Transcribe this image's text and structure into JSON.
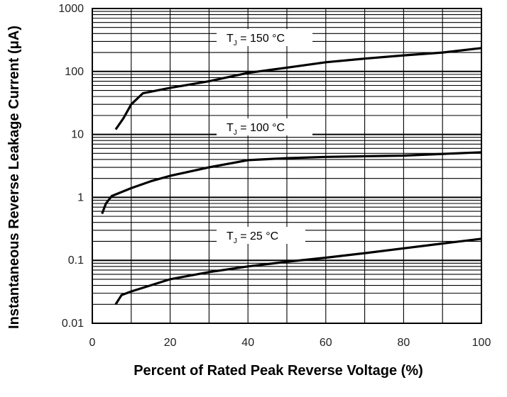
{
  "chart_data": {
    "type": "line",
    "title": "",
    "xlabel": "Percent of Rated Peak Reverse Voltage (%)",
    "ylabel": "Instantaneous Reverse Leakage Current (μA)",
    "xlim": [
      0,
      100
    ],
    "ylim": [
      0.01,
      1000
    ],
    "yscale": "log",
    "grid": true,
    "x_ticks": [
      "0",
      "20",
      "40",
      "60",
      "80",
      "100"
    ],
    "y_ticks": [
      "0.01",
      "0.1",
      "1",
      "10",
      "100",
      "1000"
    ],
    "series": [
      {
        "name": "TJ = 150 °C",
        "label_main": "T",
        "label_sub": "J",
        "label_rest": " = 150 °C",
        "points": [
          [
            6,
            12
          ],
          [
            8,
            18
          ],
          [
            10,
            30
          ],
          [
            13,
            45
          ],
          [
            20,
            55
          ],
          [
            30,
            70
          ],
          [
            40,
            95
          ],
          [
            50,
            115
          ],
          [
            60,
            140
          ],
          [
            70,
            160
          ],
          [
            80,
            180
          ],
          [
            90,
            200
          ],
          [
            100,
            235
          ]
        ]
      },
      {
        "name": "TJ = 100 °C",
        "label_main": "T",
        "label_sub": "J",
        "label_rest": " = 100 °C",
        "points": [
          [
            2.5,
            0.55
          ],
          [
            3.5,
            0.8
          ],
          [
            5,
            1.05
          ],
          [
            10,
            1.4
          ],
          [
            15,
            1.8
          ],
          [
            20,
            2.2
          ],
          [
            30,
            3.0
          ],
          [
            40,
            3.9
          ],
          [
            50,
            4.2
          ],
          [
            60,
            4.4
          ],
          [
            70,
            4.5
          ],
          [
            80,
            4.6
          ],
          [
            90,
            4.9
          ],
          [
            100,
            5.2
          ]
        ]
      },
      {
        "name": "TJ = 25 °C",
        "label_main": "T",
        "label_sub": "J",
        "label_rest": " = 25 °C",
        "points": [
          [
            6,
            0.02
          ],
          [
            7.5,
            0.028
          ],
          [
            10,
            0.032
          ],
          [
            20,
            0.05
          ],
          [
            30,
            0.065
          ],
          [
            40,
            0.08
          ],
          [
            50,
            0.095
          ],
          [
            60,
            0.11
          ],
          [
            70,
            0.13
          ],
          [
            80,
            0.155
          ],
          [
            90,
            0.185
          ],
          [
            100,
            0.22
          ]
        ]
      }
    ]
  }
}
